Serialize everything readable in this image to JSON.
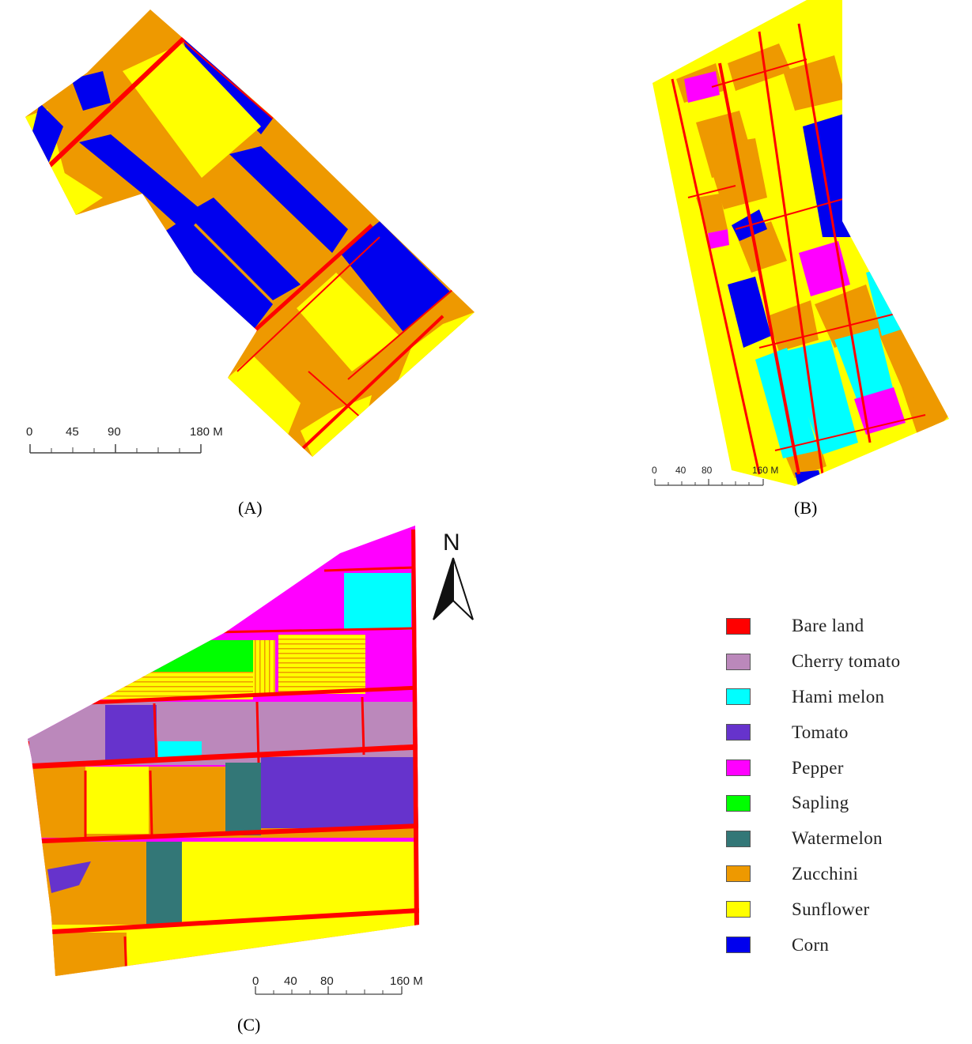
{
  "panels": {
    "A": {
      "label": "(A)",
      "scale_ticks": [
        "0",
        "45",
        "90",
        "180 M"
      ]
    },
    "B": {
      "label": "(B)",
      "scale_ticks": [
        "0",
        "40",
        "80",
        "160 M"
      ]
    },
    "C": {
      "label": "(C)",
      "scale_ticks": [
        "0",
        "40",
        "80",
        "160 M"
      ]
    }
  },
  "north_arrow": {
    "label": "N"
  },
  "legend": {
    "items": [
      {
        "label": "Bare land",
        "color": "#ff0000"
      },
      {
        "label": "Cherry tomato",
        "color": "#bb88bb"
      },
      {
        "label": "Hami melon",
        "color": "#00ffff"
      },
      {
        "label": "Tomato",
        "color": "#6633cc"
      },
      {
        "label": "Pepper",
        "color": "#ff00ff"
      },
      {
        "label": "Sapling",
        "color": "#00ff00"
      },
      {
        "label": "Watermelon",
        "color": "#337777"
      },
      {
        "label": "Zucchini",
        "color": "#ee9900"
      },
      {
        "label": "Sunflower",
        "color": "#ffff00"
      },
      {
        "label": "Corn",
        "color": "#0000ee"
      }
    ]
  }
}
